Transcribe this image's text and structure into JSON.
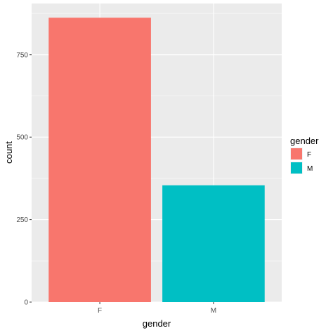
{
  "chart_data": {
    "type": "bar",
    "categories": [
      "F",
      "M"
    ],
    "values": [
      862,
      354
    ],
    "colors": [
      "#F8766D",
      "#00BFC4"
    ],
    "xlabel": "gender",
    "ylabel": "count",
    "ylim": [
      0,
      905
    ],
    "yticks": [
      0,
      250,
      500,
      750
    ],
    "grid": true,
    "panel_background": "#EBEBEB",
    "grid_color": "#FFFFFF",
    "legend": {
      "title": "gender",
      "position": "right",
      "entries": [
        {
          "label": "F",
          "color": "#F8766D"
        },
        {
          "label": "M",
          "color": "#00BFC4"
        }
      ]
    }
  }
}
